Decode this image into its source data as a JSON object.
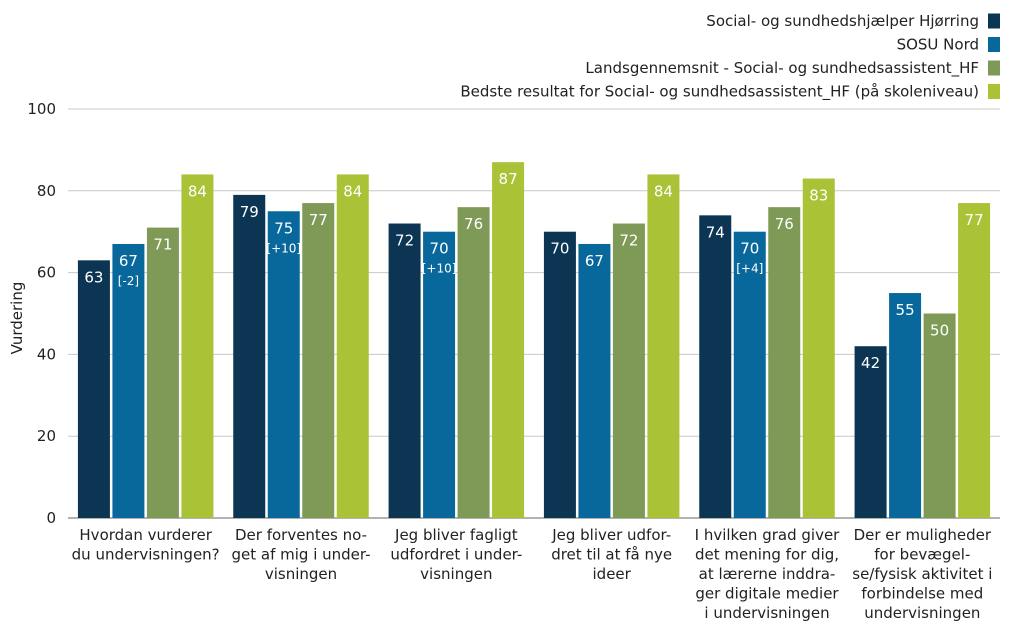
{
  "chart_data": {
    "type": "bar",
    "ylabel": "Vurdering",
    "ylim": [
      0,
      100
    ],
    "yticks": [
      0,
      20,
      40,
      60,
      80,
      100
    ],
    "grid": true,
    "legend_position": "top-right",
    "categories": [
      [
        "Hvordan vurderer",
        "du undervisningen?"
      ],
      [
        "Der forventes no-",
        "get af mig i under-",
        "visningen"
      ],
      [
        "Jeg bliver fagligt",
        "udfordret i under-",
        "visningen"
      ],
      [
        "Jeg bliver udfor-",
        "dret til at få nye",
        "ideer"
      ],
      [
        "I hvilken grad giver",
        "det mening for dig,",
        "at lærerne inddra-",
        "ger digitale medier",
        "i undervisningen"
      ],
      [
        "Der er muligheder",
        "for bevægel-",
        "se/fysisk aktivitet i",
        "forbindelse med",
        "undervisningen"
      ]
    ],
    "series": [
      {
        "name": "Social- og sundhedshjælper Hjørring",
        "color": "#0b3552",
        "values": [
          63,
          79,
          72,
          70,
          74,
          42
        ],
        "labels": [
          "63",
          "79",
          "72",
          "70",
          "74",
          "42"
        ],
        "annotations": [
          "",
          "",
          "",
          "",
          "",
          ""
        ]
      },
      {
        "name": "SOSU Nord",
        "color": "#08689b",
        "values": [
          67,
          75,
          70,
          67,
          70,
          55
        ],
        "labels": [
          "67",
          "75",
          "70",
          "67",
          "70",
          "55"
        ],
        "annotations": [
          "[-2]",
          "[+10]",
          "[+10]",
          "",
          "[+4]",
          ""
        ]
      },
      {
        "name": "Landsgennemsnit - Social- og sundhedsassistent_HF",
        "color": "#7f9a56",
        "values": [
          71,
          77,
          76,
          72,
          76,
          50
        ],
        "labels": [
          "71",
          "77",
          "76",
          "72",
          "76",
          "50"
        ],
        "annotations": [
          "",
          "",
          "",
          "",
          "",
          ""
        ]
      },
      {
        "name": "Bedste resultat for Social- og sundhedsassistent_HF (på skoleniveau)",
        "color": "#a9c236",
        "values": [
          84,
          84,
          87,
          84,
          83,
          77
        ],
        "labels": [
          "84",
          "84",
          "87",
          "84",
          "83",
          "77"
        ],
        "annotations": [
          "",
          "",
          "",
          "",
          "",
          ""
        ]
      }
    ]
  }
}
